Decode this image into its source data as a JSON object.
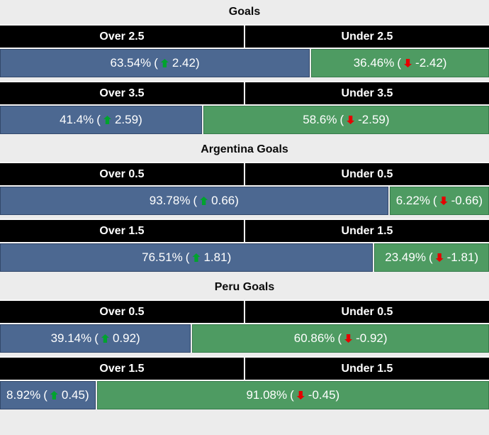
{
  "colors": {
    "over_bar": "#4c6891",
    "over_border": "#32486b",
    "under_bar": "#4e9b62",
    "under_border": "#367a4b",
    "header_bg": "#000000",
    "header_text": "#ffffff",
    "bar_text": "#ffffff",
    "up_arrow": "#00a32e",
    "down_arrow": "#e50000",
    "section_bg": "#ececec"
  },
  "format": {
    "paren_open": "(",
    "paren_close": ")"
  },
  "sections": [
    {
      "title": "Goals",
      "markets": [
        {
          "over_label": "Over 2.5",
          "under_label": "Under 2.5",
          "over_pct": "63.54%",
          "over_odds": "2.42",
          "over_width": 63.54,
          "over_trend": "up",
          "under_pct": "36.46%",
          "under_odds": "-2.42",
          "under_width": 36.46,
          "under_trend": "down"
        },
        {
          "over_label": "Over 3.5",
          "under_label": "Under 3.5",
          "over_pct": "41.4%",
          "over_odds": "2.59",
          "over_width": 41.4,
          "over_trend": "up",
          "under_pct": "58.6%",
          "under_odds": "-2.59",
          "under_width": 58.6,
          "under_trend": "down"
        }
      ]
    },
    {
      "title": "Argentina Goals",
      "markets": [
        {
          "over_label": "Over 0.5",
          "under_label": "Under 0.5",
          "over_pct": "93.78%",
          "over_odds": "0.66",
          "over_width": 93.78,
          "over_trend": "up",
          "under_pct": "6.22%",
          "under_odds": "-0.66",
          "under_width": 6.22,
          "under_trend": "down"
        },
        {
          "over_label": "Over 1.5",
          "under_label": "Under 1.5",
          "over_pct": "76.51%",
          "over_odds": "1.81",
          "over_width": 76.51,
          "over_trend": "up",
          "under_pct": "23.49%",
          "under_odds": "-1.81",
          "under_width": 23.49,
          "under_trend": "down"
        }
      ]
    },
    {
      "title": "Peru Goals",
      "markets": [
        {
          "over_label": "Over 0.5",
          "under_label": "Under 0.5",
          "over_pct": "39.14%",
          "over_odds": "0.92",
          "over_width": 39.14,
          "over_trend": "up",
          "under_pct": "60.86%",
          "under_odds": "-0.92",
          "under_width": 60.86,
          "under_trend": "down"
        },
        {
          "over_label": "Over 1.5",
          "under_label": "Under 1.5",
          "over_pct": "8.92%",
          "over_odds": "0.45",
          "over_width": 8.92,
          "over_trend": "up",
          "under_pct": "91.08%",
          "under_odds": "-0.45",
          "under_width": 91.08,
          "under_trend": "down"
        }
      ]
    }
  ],
  "chart_data": {
    "type": "bar",
    "subtype": "stacked-percentage-horizontal",
    "groups": [
      {
        "title": "Goals",
        "rows": [
          {
            "categories": [
              "Over 2.5",
              "Under 2.5"
            ],
            "percentages": [
              63.54,
              36.46
            ],
            "odds_change": [
              2.42,
              -2.42
            ],
            "trends": [
              "up",
              "down"
            ]
          },
          {
            "categories": [
              "Over 3.5",
              "Under 3.5"
            ],
            "percentages": [
              41.4,
              58.6
            ],
            "odds_change": [
              2.59,
              -2.59
            ],
            "trends": [
              "up",
              "down"
            ]
          }
        ]
      },
      {
        "title": "Argentina Goals",
        "rows": [
          {
            "categories": [
              "Over 0.5",
              "Under 0.5"
            ],
            "percentages": [
              93.78,
              6.22
            ],
            "odds_change": [
              0.66,
              -0.66
            ],
            "trends": [
              "up",
              "down"
            ]
          },
          {
            "categories": [
              "Over 1.5",
              "Under 1.5"
            ],
            "percentages": [
              76.51,
              23.49
            ],
            "odds_change": [
              1.81,
              -1.81
            ],
            "trends": [
              "up",
              "down"
            ]
          }
        ]
      },
      {
        "title": "Peru Goals",
        "rows": [
          {
            "categories": [
              "Over 0.5",
              "Under 0.5"
            ],
            "percentages": [
              39.14,
              60.86
            ],
            "odds_change": [
              0.92,
              -0.92
            ],
            "trends": [
              "up",
              "down"
            ]
          },
          {
            "categories": [
              "Over 1.5",
              "Under 1.5"
            ],
            "percentages": [
              8.92,
              91.08
            ],
            "odds_change": [
              0.45,
              -0.45
            ],
            "trends": [
              "up",
              "down"
            ]
          }
        ]
      }
    ],
    "legend": "blue = Over probability, green = Under probability, value in parentheses = odds with trend arrow",
    "xlim": [
      0,
      100
    ],
    "grid": false
  }
}
